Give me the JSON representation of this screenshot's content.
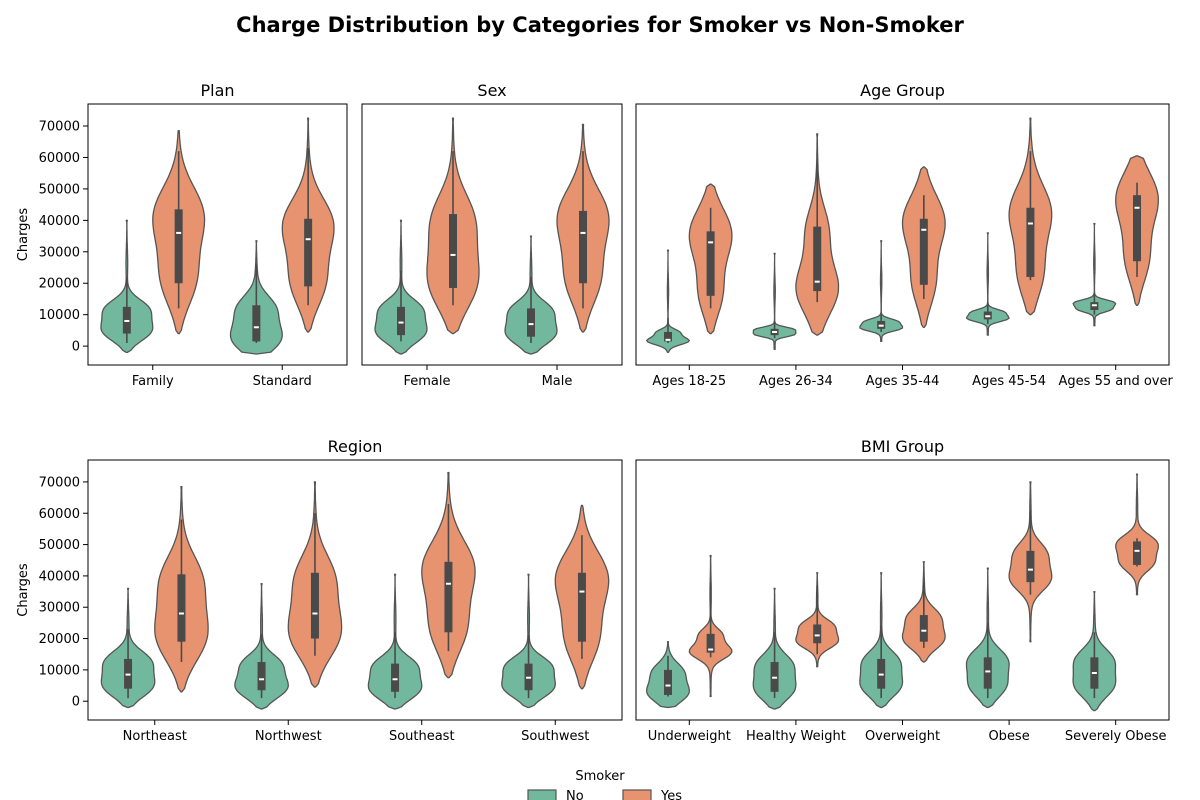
{
  "chart_title": "Charge Distribution by Categories for Smoker vs Non-Smoker",
  "colors": {
    "No": "#72b89f",
    "Yes": "#e8936f"
  },
  "legend": {
    "title": "Smoker",
    "entries": [
      "No",
      "Yes"
    ]
  },
  "chart_data": [
    {
      "type": "violin",
      "title": "Plan",
      "ylabel": "Charges",
      "ylim": [
        -6000,
        77000
      ],
      "yticks": [
        0,
        10000,
        20000,
        30000,
        40000,
        50000,
        60000,
        70000
      ],
      "categories": [
        "Family",
        "Standard"
      ],
      "series": [
        {
          "name": "No",
          "stats": [
            {
              "min": 1000,
              "q1": 4000,
              "median": 8000,
              "q3": 12500,
              "max": 22000,
              "lo": -2000,
              "hi": 40000
            },
            {
              "min": 1000,
              "q1": 1500,
              "median": 6000,
              "q3": 13000,
              "max": 26000,
              "lo": -2500,
              "hi": 33500
            }
          ]
        },
        {
          "name": "Yes",
          "stats": [
            {
              "min": 12000,
              "q1": 20000,
              "median": 36000,
              "q3": 43500,
              "max": 62000,
              "lo": 4000,
              "hi": 68500
            },
            {
              "min": 13000,
              "q1": 19000,
              "median": 34000,
              "q3": 40500,
              "max": 63000,
              "lo": 4500,
              "hi": 72500
            }
          ]
        }
      ]
    },
    {
      "type": "violin",
      "title": "Sex",
      "ylabel": "",
      "ylim": [
        -6000,
        77000
      ],
      "yticks": [],
      "categories": [
        "Female",
        "Male"
      ],
      "series": [
        {
          "name": "No",
          "stats": [
            {
              "min": 1500,
              "q1": 3500,
              "median": 7500,
              "q3": 12500,
              "max": 24000,
              "lo": -2500,
              "hi": 40000
            },
            {
              "min": 1000,
              "q1": 3000,
              "median": 7000,
              "q3": 12000,
              "max": 22000,
              "lo": -2500,
              "hi": 35000
            }
          ]
        },
        {
          "name": "Yes",
          "stats": [
            {
              "min": 13000,
              "q1": 18500,
              "median": 29000,
              "q3": 42000,
              "max": 62000,
              "lo": 4000,
              "hi": 72500
            },
            {
              "min": 12000,
              "q1": 20000,
              "median": 36000,
              "q3": 43000,
              "max": 62000,
              "lo": 4500,
              "hi": 70500
            }
          ]
        }
      ]
    },
    {
      "type": "violin",
      "title": "Age Group",
      "ylabel": "",
      "ylim": [
        -6000,
        77000
      ],
      "yticks": [],
      "categories": [
        "Ages 18-25",
        "Ages 26-34",
        "Ages 35-44",
        "Ages 45-54",
        "Ages 55 and over"
      ],
      "series": [
        {
          "name": "No",
          "stats": [
            {
              "min": 1000,
              "q1": 1500,
              "median": 2000,
              "q3": 4500,
              "max": 9000,
              "lo": -2000,
              "hi": 30500
            },
            {
              "min": 2500,
              "q1": 3500,
              "median": 4500,
              "q3": 5500,
              "max": 8000,
              "lo": -1000,
              "hi": 29500
            },
            {
              "min": 4500,
              "q1": 5500,
              "median": 6500,
              "q3": 8000,
              "max": 10000,
              "lo": 1500,
              "hi": 33500
            },
            {
              "min": 7000,
              "q1": 8500,
              "median": 9500,
              "q3": 11000,
              "max": 14000,
              "lo": 3500,
              "hi": 36000
            },
            {
              "min": 10000,
              "q1": 11500,
              "median": 13000,
              "q3": 14000,
              "max": 17000,
              "lo": 6500,
              "hi": 39000
            }
          ]
        },
        {
          "name": "Yes",
          "stats": [
            {
              "min": 12000,
              "q1": 16000,
              "median": 33000,
              "q3": 36500,
              "max": 44000,
              "lo": 4000,
              "hi": 51500
            },
            {
              "min": 14000,
              "q1": 17500,
              "median": 20500,
              "q3": 38000,
              "max": 58000,
              "lo": 3500,
              "hi": 67500
            },
            {
              "min": 15000,
              "q1": 19500,
              "median": 37000,
              "q3": 40500,
              "max": 48000,
              "lo": 6000,
              "hi": 57000
            },
            {
              "min": 21000,
              "q1": 22000,
              "median": 39000,
              "q3": 44000,
              "max": 62000,
              "lo": 10000,
              "hi": 72500
            },
            {
              "min": 22000,
              "q1": 27000,
              "median": 44000,
              "q3": 48000,
              "max": 52000,
              "lo": 13000,
              "hi": 60500
            }
          ]
        }
      ]
    },
    {
      "type": "violin",
      "title": "Region",
      "ylabel": "Charges",
      "ylim": [
        -6000,
        77000
      ],
      "yticks": [
        0,
        10000,
        20000,
        30000,
        40000,
        50000,
        60000,
        70000
      ],
      "categories": [
        "Northeast",
        "Northwest",
        "Southeast",
        "Southwest"
      ],
      "series": [
        {
          "name": "No",
          "stats": [
            {
              "min": 1000,
              "q1": 4000,
              "median": 8500,
              "q3": 13500,
              "max": 23000,
              "lo": -2000,
              "hi": 36000
            },
            {
              "min": 1000,
              "q1": 3500,
              "median": 7000,
              "q3": 12500,
              "max": 21500,
              "lo": -2500,
              "hi": 37500
            },
            {
              "min": 1000,
              "q1": 3000,
              "median": 7000,
              "q3": 12000,
              "max": 22000,
              "lo": -2500,
              "hi": 40500
            },
            {
              "min": 1000,
              "q1": 3500,
              "median": 7500,
              "q3": 12000,
              "max": 21000,
              "lo": -2000,
              "hi": 40500
            }
          ]
        },
        {
          "name": "Yes",
          "stats": [
            {
              "min": 12500,
              "q1": 19000,
              "median": 28000,
              "q3": 40500,
              "max": 58000,
              "lo": 3000,
              "hi": 68500
            },
            {
              "min": 14500,
              "q1": 20000,
              "median": 28000,
              "q3": 41000,
              "max": 60000,
              "lo": 4500,
              "hi": 70000
            },
            {
              "min": 16000,
              "q1": 22000,
              "median": 37500,
              "q3": 44500,
              "max": 63000,
              "lo": 7500,
              "hi": 73000
            },
            {
              "min": 13500,
              "q1": 19000,
              "median": 35000,
              "q3": 41000,
              "max": 53000,
              "lo": 4000,
              "hi": 62500
            }
          ]
        }
      ]
    },
    {
      "type": "violin",
      "title": "BMI Group",
      "ylabel": "",
      "ylim": [
        -6000,
        77000
      ],
      "yticks": [],
      "categories": [
        "Underweight",
        "Healthy Weight",
        "Overweight",
        "Obese",
        "Severely Obese"
      ],
      "series": [
        {
          "name": "No",
          "stats": [
            {
              "min": 1500,
              "q1": 2000,
              "median": 5000,
              "q3": 10000,
              "max": 14500,
              "lo": -2000,
              "hi": 19000
            },
            {
              "min": 1000,
              "q1": 3000,
              "median": 7500,
              "q3": 12500,
              "max": 22000,
              "lo": -2500,
              "hi": 36000
            },
            {
              "min": 1000,
              "q1": 4000,
              "median": 8500,
              "q3": 13500,
              "max": 24000,
              "lo": -2000,
              "hi": 41000
            },
            {
              "min": 1000,
              "q1": 4000,
              "median": 9500,
              "q3": 14000,
              "max": 25000,
              "lo": -2000,
              "hi": 42500
            },
            {
              "min": 1000,
              "q1": 4000,
              "median": 9000,
              "q3": 14000,
              "max": 22000,
              "lo": -3000,
              "hi": 35000
            }
          ]
        },
        {
          "name": "Yes",
          "stats": [
            {
              "min": 14000,
              "q1": 15500,
              "median": 16500,
              "q3": 21500,
              "max": 38000,
              "lo": 1500,
              "hi": 46500
            },
            {
              "min": 15000,
              "q1": 18500,
              "median": 21000,
              "q3": 24500,
              "max": 37000,
              "lo": 11000,
              "hi": 41000
            },
            {
              "min": 17000,
              "q1": 19000,
              "median": 22500,
              "q3": 27500,
              "max": 38000,
              "lo": 12500,
              "hi": 44500
            },
            {
              "min": 34000,
              "q1": 38000,
              "median": 42000,
              "q3": 48000,
              "max": 61000,
              "lo": 19000,
              "hi": 70000
            },
            {
              "min": 43000,
              "q1": 43500,
              "median": 48000,
              "q3": 51000,
              "max": 52000,
              "lo": 34000,
              "hi": 72500
            }
          ]
        }
      ]
    }
  ]
}
